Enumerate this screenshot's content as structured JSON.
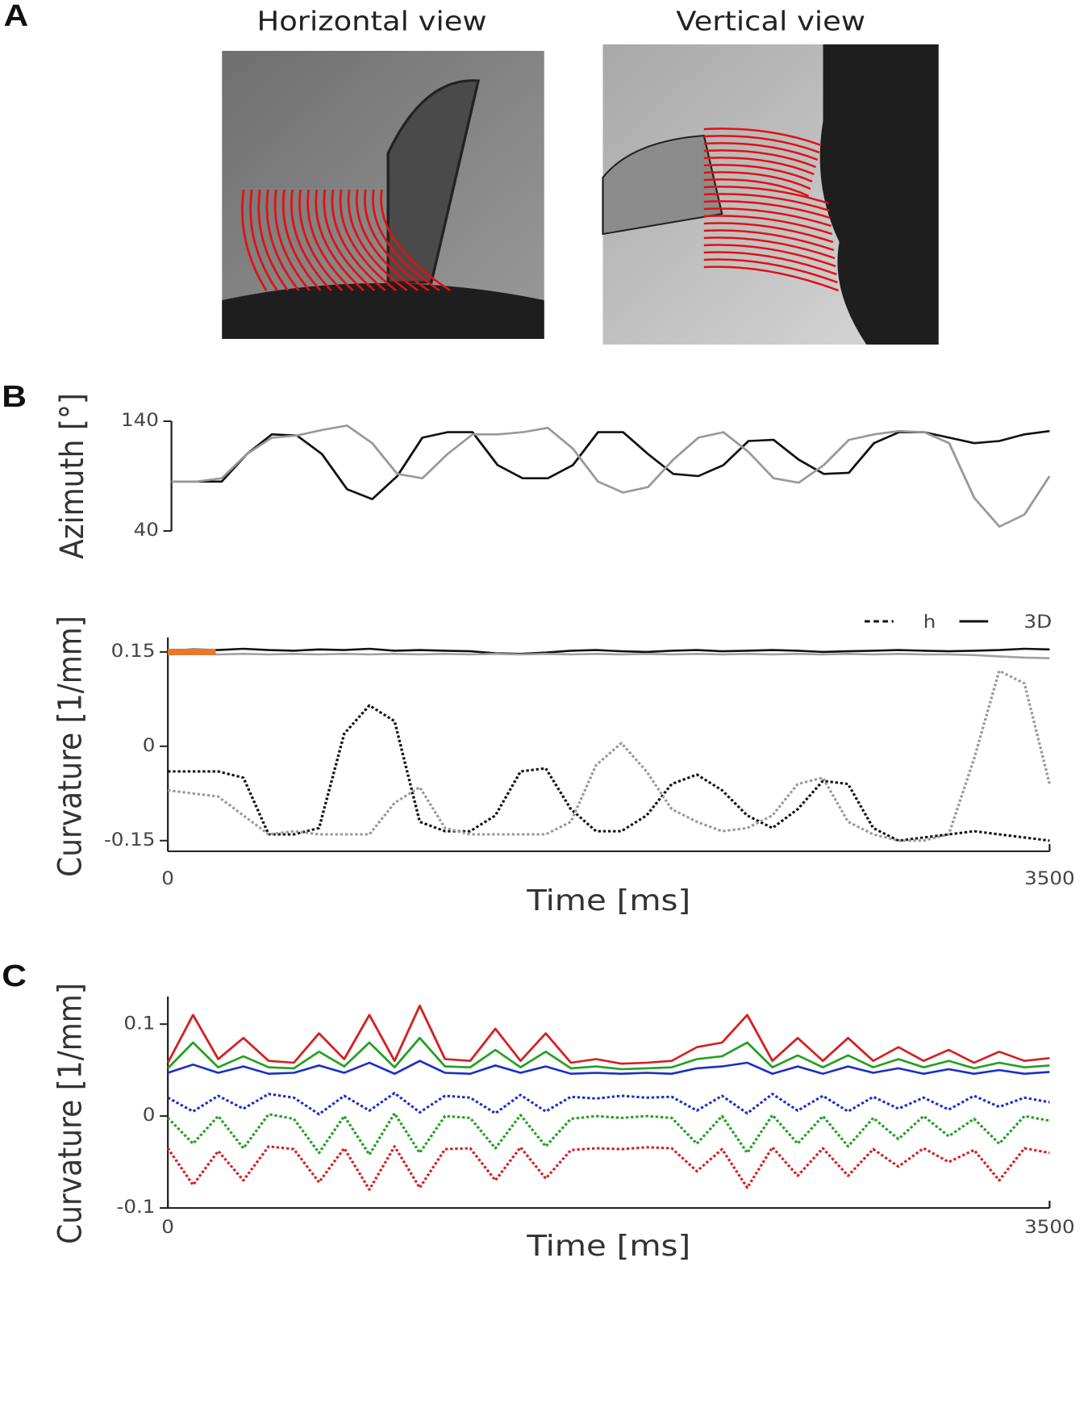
{
  "panel_labels": [
    "A",
    "B",
    "C"
  ],
  "images": [
    {
      "title": "Horizontal view"
    },
    {
      "title": "Vertical view"
    }
  ],
  "chart_data": [
    {
      "type": "line",
      "ylabel": "Azimuth [°]",
      "x": [
        0,
        100,
        200,
        300,
        400,
        500,
        600,
        700,
        800,
        900,
        1000,
        1100,
        1200,
        1300,
        1400,
        1500,
        1600,
        1700,
        1800,
        1900,
        2000,
        2100,
        2200,
        2300,
        2400,
        2500,
        2600,
        2700,
        2800,
        2900,
        3000,
        3100,
        3200,
        3300,
        3400,
        3500
      ],
      "xlim": [
        0,
        3500
      ],
      "ylim": [
        40,
        140
      ],
      "yticks": [
        40,
        140
      ],
      "series": [
        {
          "color": "#111111",
          "dashed": false,
          "values": [
            85,
            85,
            85,
            110,
            128,
            127,
            110,
            78,
            69,
            90,
            125,
            130,
            130,
            100,
            88,
            88,
            100,
            130,
            130,
            110,
            92,
            90,
            100,
            122,
            123,
            105,
            92,
            93,
            120,
            130,
            130,
            125,
            120,
            122,
            128,
            131
          ]
        },
        {
          "color": "#999999",
          "dashed": false,
          "values": [
            85,
            85,
            88,
            110,
            125,
            127,
            132,
            136,
            120,
            92,
            88,
            110,
            128,
            128,
            130,
            134,
            115,
            85,
            75,
            80,
            105,
            125,
            130,
            112,
            88,
            84,
            100,
            123,
            128,
            131,
            130,
            120,
            70,
            44,
            55,
            90
          ]
        }
      ]
    },
    {
      "type": "line",
      "ylabel": "Curvature [1/mm]",
      "xlabel": "Time [ms]",
      "x": [
        0,
        100,
        200,
        300,
        400,
        500,
        600,
        700,
        800,
        900,
        1000,
        1100,
        1200,
        1300,
        1400,
        1500,
        1600,
        1700,
        1800,
        1900,
        2000,
        2100,
        2200,
        2300,
        2400,
        2500,
        2600,
        2700,
        2800,
        2900,
        3000,
        3100,
        3200,
        3300,
        3400,
        3500
      ],
      "xlim": [
        0,
        3500
      ],
      "xticks": [
        0,
        3500
      ],
      "ylim": [
        -0.167,
        0.173
      ],
      "yticks": [
        -0.15,
        0,
        0.15
      ],
      "legend": [
        {
          "label": "h",
          "dashed": true
        },
        {
          "label": "3D",
          "dashed": false
        }
      ],
      "highlight": {
        "x": [
          0,
          190
        ],
        "y": 0.15,
        "color": "#e8782a"
      },
      "series": [
        {
          "color": "#111111",
          "dashed": false,
          "values": [
            0.152,
            0.154,
            0.153,
            0.155,
            0.153,
            0.152,
            0.154,
            0.153,
            0.155,
            0.152,
            0.153,
            0.152,
            0.151,
            0.148,
            0.147,
            0.149,
            0.152,
            0.153,
            0.151,
            0.15,
            0.152,
            0.153,
            0.151,
            0.152,
            0.153,
            0.152,
            0.15,
            0.151,
            0.152,
            0.153,
            0.152,
            0.151,
            0.152,
            0.153,
            0.155,
            0.154
          ]
        },
        {
          "color": "#a0a0a0",
          "dashed": false,
          "values": [
            0.146,
            0.147,
            0.146,
            0.147,
            0.146,
            0.147,
            0.146,
            0.147,
            0.146,
            0.147,
            0.146,
            0.147,
            0.146,
            0.147,
            0.146,
            0.147,
            0.146,
            0.147,
            0.146,
            0.147,
            0.146,
            0.147,
            0.146,
            0.147,
            0.146,
            0.147,
            0.146,
            0.147,
            0.146,
            0.147,
            0.146,
            0.146,
            0.145,
            0.143,
            0.141,
            0.14
          ]
        },
        {
          "color": "#111111",
          "dashed": true,
          "values": [
            -0.04,
            -0.04,
            -0.04,
            -0.05,
            -0.14,
            -0.14,
            -0.13,
            0.02,
            0.065,
            0.04,
            -0.12,
            -0.135,
            -0.135,
            -0.11,
            -0.04,
            -0.035,
            -0.1,
            -0.135,
            -0.135,
            -0.11,
            -0.06,
            -0.045,
            -0.07,
            -0.11,
            -0.13,
            -0.1,
            -0.055,
            -0.06,
            -0.13,
            -0.15,
            -0.145,
            -0.14,
            -0.135,
            -0.14,
            -0.145,
            -0.15
          ]
        },
        {
          "color": "#999999",
          "dashed": true,
          "values": [
            -0.07,
            -0.075,
            -0.08,
            -0.11,
            -0.14,
            -0.135,
            -0.14,
            -0.14,
            -0.14,
            -0.09,
            -0.065,
            -0.13,
            -0.14,
            -0.14,
            -0.14,
            -0.14,
            -0.12,
            -0.03,
            0.005,
            -0.04,
            -0.1,
            -0.12,
            -0.135,
            -0.13,
            -0.11,
            -0.06,
            -0.05,
            -0.12,
            -0.14,
            -0.15,
            -0.15,
            -0.14,
            -0.02,
            0.12,
            0.1,
            -0.06
          ]
        }
      ]
    },
    {
      "type": "line",
      "ylabel": "Curvature [1/mm]",
      "xlabel": "Time [ms]",
      "x": [
        0,
        100,
        200,
        300,
        400,
        500,
        600,
        700,
        800,
        900,
        1000,
        1100,
        1200,
        1300,
        1400,
        1500,
        1600,
        1700,
        1800,
        1900,
        2000,
        2100,
        2200,
        2300,
        2400,
        2500,
        2600,
        2700,
        2800,
        2900,
        3000,
        3100,
        3200,
        3300,
        3400,
        3500
      ],
      "xlim": [
        0,
        3500
      ],
      "xticks": [
        0,
        3500
      ],
      "ylim": [
        -0.1,
        0.13
      ],
      "yticks": [
        -0.1,
        0,
        0.1
      ],
      "series": [
        {
          "color": "#d42020",
          "dashed": false,
          "values": [
            0.058,
            0.11,
            0.062,
            0.085,
            0.06,
            0.058,
            0.09,
            0.062,
            0.11,
            0.06,
            0.12,
            0.062,
            0.06,
            0.095,
            0.06,
            0.09,
            0.058,
            0.062,
            0.057,
            0.058,
            0.06,
            0.075,
            0.08,
            0.11,
            0.06,
            0.085,
            0.06,
            0.085,
            0.06,
            0.075,
            0.06,
            0.072,
            0.058,
            0.07,
            0.06,
            0.063
          ]
        },
        {
          "color": "#22a022",
          "dashed": false,
          "values": [
            0.052,
            0.08,
            0.053,
            0.065,
            0.053,
            0.052,
            0.07,
            0.054,
            0.08,
            0.053,
            0.085,
            0.054,
            0.053,
            0.072,
            0.053,
            0.07,
            0.052,
            0.054,
            0.051,
            0.052,
            0.053,
            0.062,
            0.065,
            0.08,
            0.053,
            0.066,
            0.053,
            0.066,
            0.053,
            0.062,
            0.053,
            0.06,
            0.052,
            0.058,
            0.053,
            0.055
          ]
        },
        {
          "color": "#1a2ec8",
          "dashed": false,
          "values": [
            0.047,
            0.056,
            0.047,
            0.054,
            0.046,
            0.047,
            0.055,
            0.047,
            0.058,
            0.046,
            0.06,
            0.047,
            0.046,
            0.055,
            0.047,
            0.054,
            0.046,
            0.047,
            0.046,
            0.047,
            0.046,
            0.052,
            0.054,
            0.058,
            0.046,
            0.054,
            0.046,
            0.054,
            0.047,
            0.052,
            0.046,
            0.051,
            0.046,
            0.05,
            0.046,
            0.048
          ]
        },
        {
          "color": "#1a2ec8",
          "dashed": true,
          "values": [
            0.02,
            0.005,
            0.022,
            0.008,
            0.024,
            0.02,
            0.002,
            0.022,
            0.006,
            0.025,
            0.004,
            0.022,
            0.02,
            0.003,
            0.023,
            0.005,
            0.021,
            0.019,
            0.022,
            0.02,
            0.021,
            0.006,
            0.022,
            0.003,
            0.024,
            0.006,
            0.022,
            0.005,
            0.021,
            0.008,
            0.02,
            0.007,
            0.022,
            0.01,
            0.02,
            0.015
          ]
        },
        {
          "color": "#22a022",
          "dashed": true,
          "values": [
            -0.002,
            -0.03,
            0,
            -0.035,
            0.002,
            -0.003,
            -0.04,
            0,
            -0.042,
            0.003,
            -0.04,
            0,
            -0.002,
            -0.035,
            0.001,
            -0.033,
            -0.003,
            0,
            -0.002,
            0,
            -0.002,
            -0.03,
            0,
            -0.04,
            0.001,
            -0.03,
            0,
            -0.033,
            -0.002,
            -0.025,
            0,
            -0.022,
            -0.003,
            -0.03,
            0,
            -0.005
          ]
        },
        {
          "color": "#d42020",
          "dashed": true,
          "values": [
            -0.035,
            -0.075,
            -0.038,
            -0.07,
            -0.033,
            -0.036,
            -0.072,
            -0.035,
            -0.08,
            -0.033,
            -0.078,
            -0.036,
            -0.035,
            -0.07,
            -0.034,
            -0.068,
            -0.037,
            -0.035,
            -0.036,
            -0.034,
            -0.035,
            -0.06,
            -0.036,
            -0.078,
            -0.034,
            -0.065,
            -0.035,
            -0.065,
            -0.036,
            -0.055,
            -0.035,
            -0.05,
            -0.037,
            -0.07,
            -0.035,
            -0.04
          ]
        }
      ]
    }
  ]
}
